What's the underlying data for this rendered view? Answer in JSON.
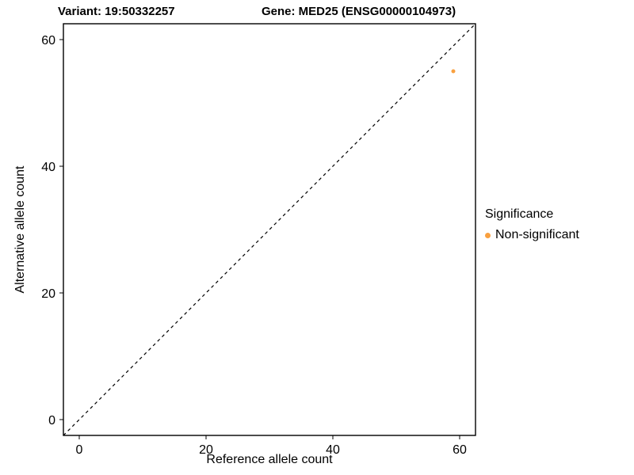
{
  "chart_data": {
    "type": "scatter",
    "title_left": "Variant: 19:50332257",
    "title_right": "Gene: MED25 (ENSG00000104973)",
    "xlabel": "Reference allele count",
    "ylabel": "Alternative allele count",
    "xlim": [
      -2.5,
      62.5
    ],
    "ylim": [
      -2.5,
      62.5
    ],
    "xticks": [
      0,
      20,
      40,
      60
    ],
    "yticks": [
      0,
      20,
      40,
      60
    ],
    "grid": false,
    "panel_border_color": "#000000",
    "identity_line": {
      "style": "dashed",
      "color": "#000000",
      "from": [
        -2.5,
        -2.5
      ],
      "to": [
        62.5,
        62.5
      ]
    },
    "series": [
      {
        "name": "Non-significant",
        "color": "#F9A03F",
        "points": [
          [
            59,
            55
          ]
        ]
      }
    ],
    "legend": {
      "title": "Significance",
      "position": "right",
      "entries": [
        {
          "label": "Non-significant",
          "color": "#F9A03F"
        }
      ]
    }
  }
}
